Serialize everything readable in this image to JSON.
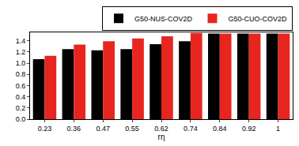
{
  "chart_data": {
    "type": "bar",
    "x_label": "rη",
    "categories": [
      "0.23",
      "0.36",
      "0.47",
      "0.55",
      "0.62",
      "0.74",
      "0.84",
      "0.92",
      "1"
    ],
    "series": [
      {
        "name": "G50-NUS-COV2D",
        "color": "#000000",
        "values": [
          1.07,
          1.25,
          1.23,
          1.25,
          1.34,
          1.39,
          1.53,
          1.53,
          1.53
        ]
      },
      {
        "name": "G50-CUO-COV2D",
        "color": "#e8251f",
        "values": [
          1.13,
          1.33,
          1.39,
          1.44,
          1.48,
          1.54,
          1.53,
          1.53,
          1.53
        ]
      }
    ],
    "ylim": [
      0,
      1.55
    ],
    "yticks": [
      {
        "value": 0,
        "label": "0.0"
      },
      {
        "value": 0.2,
        "label": "0.2"
      },
      {
        "value": 0.4,
        "label": "0.4"
      },
      {
        "value": 0.6,
        "label": "0.6"
      },
      {
        "value": 0.8,
        "label": "0.8"
      },
      {
        "value": 1,
        "label": "1.0"
      },
      {
        "value": 1.2,
        "label": "1.2"
      },
      {
        "value": 1.4,
        "label": "1.4"
      }
    ],
    "legend": "top right",
    "grid": false
  }
}
